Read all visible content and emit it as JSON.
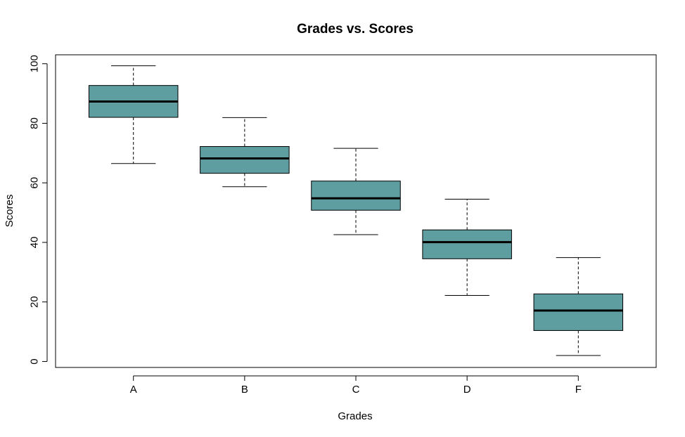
{
  "chart_data": {
    "type": "boxplot",
    "title": "Grades vs. Scores",
    "xlabel": "Grades",
    "ylabel": "Scores",
    "ylim": [
      -2,
      103
    ],
    "yticks": [
      0,
      20,
      40,
      60,
      80,
      100
    ],
    "categories": [
      "A",
      "B",
      "C",
      "D",
      "F"
    ],
    "boxes": [
      {
        "category": "A",
        "whisker_low": 66.5,
        "q1": 82,
        "median": 87.3,
        "q3": 92.7,
        "whisker_high": 99.3
      },
      {
        "category": "B",
        "whisker_low": 58.7,
        "q1": 63.2,
        "median": 68.2,
        "q3": 72.2,
        "whisker_high": 81.9
      },
      {
        "category": "C",
        "whisker_low": 42.6,
        "q1": 50.8,
        "median": 54.8,
        "q3": 60.6,
        "whisker_high": 71.6
      },
      {
        "category": "D",
        "whisker_low": 22.2,
        "q1": 34.5,
        "median": 40.1,
        "q3": 44.2,
        "whisker_high": 54.5
      },
      {
        "category": "F",
        "whisker_low": 2,
        "q1": 10.4,
        "median": 17.1,
        "q3": 22.7,
        "whisker_high": 34.9
      }
    ],
    "box_color": "#5f9ea0",
    "grid": false
  }
}
